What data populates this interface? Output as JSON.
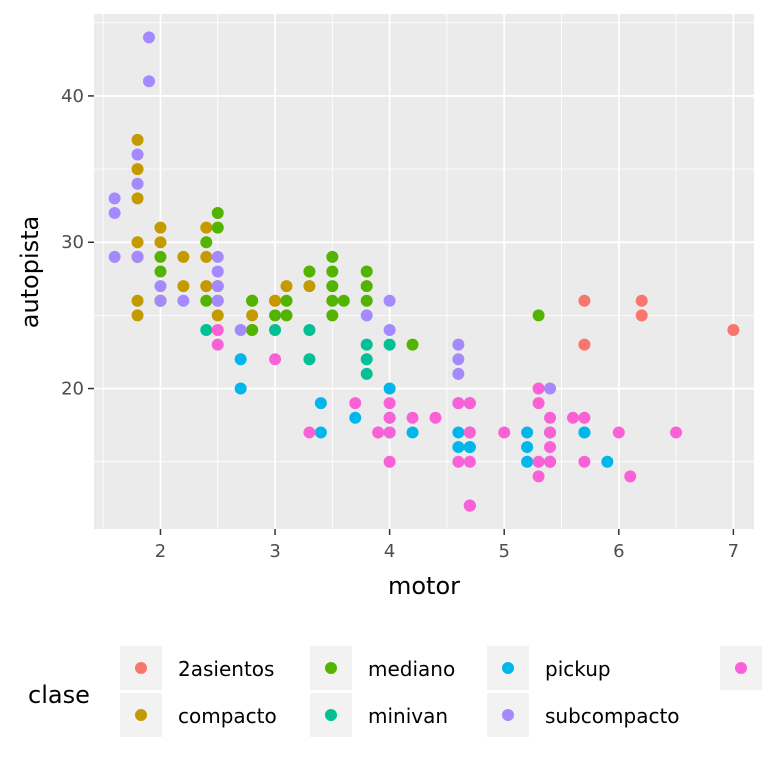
{
  "chart_data": {
    "type": "scatter",
    "title": "",
    "xlabel": "motor",
    "ylabel": "autopista",
    "xlim": [
      1.42,
      7.18
    ],
    "ylim": [
      10.4,
      45.6
    ],
    "x_ticks": [
      2,
      3,
      4,
      5,
      6,
      7
    ],
    "y_ticks": [
      20,
      30,
      40
    ],
    "grid": true,
    "legend_title": "clase",
    "legend_position": "bottom",
    "series": [
      {
        "name": "2asientos",
        "color": "#F8766D",
        "x": [
          5.7,
          5.7,
          6.2,
          6.2,
          7.0
        ],
        "y": [
          26,
          23,
          26,
          25,
          24
        ]
      },
      {
        "name": "compacto",
        "color": "#C49A00",
        "x": [
          1.8,
          1.8,
          1.8,
          1.8,
          1.8,
          1.8,
          1.8,
          2.0,
          2.0,
          2.0,
          2.2,
          2.2,
          2.4,
          2.4,
          2.4,
          2.5,
          2.5,
          2.5,
          2.8,
          2.8,
          2.8,
          3.0,
          3.0,
          3.1,
          3.3
        ],
        "y": [
          37,
          35,
          33,
          30,
          26,
          25,
          29,
          31,
          30,
          26,
          29,
          27,
          31,
          29,
          27,
          27,
          26,
          25,
          26,
          25,
          24,
          26,
          26,
          27,
          27
        ]
      },
      {
        "name": "mediano",
        "color": "#53B400",
        "x": [
          1.8,
          2.0,
          2.0,
          2.0,
          2.4,
          2.4,
          2.5,
          2.5,
          2.8,
          2.8,
          3.0,
          3.1,
          3.1,
          3.3,
          3.5,
          3.5,
          3.5,
          3.5,
          3.5,
          3.6,
          3.8,
          3.8,
          3.8,
          4.2,
          5.3
        ],
        "y": [
          29,
          29,
          28,
          26,
          30,
          26,
          32,
          31,
          26,
          24,
          25,
          26,
          25,
          28,
          29,
          28,
          27,
          26,
          25,
          26,
          28,
          27,
          26,
          23,
          25
        ]
      },
      {
        "name": "minivan",
        "color": "#00C094",
        "x": [
          2.4,
          3.0,
          3.3,
          3.3,
          3.8,
          3.8,
          3.8,
          4.0
        ],
        "y": [
          24,
          24,
          24,
          22,
          23,
          22,
          21,
          23
        ]
      },
      {
        "name": "pickup",
        "color": "#00B6EB",
        "x": [
          2.7,
          2.7,
          3.4,
          3.4,
          3.7,
          4.0,
          4.0,
          4.0,
          4.2,
          4.6,
          4.6,
          4.7,
          4.7,
          4.7,
          4.7,
          5.2,
          5.2,
          5.2,
          5.4,
          5.4,
          5.7,
          5.7,
          5.9,
          4.7
        ],
        "y": [
          22,
          20,
          19,
          17,
          18,
          20,
          18,
          17,
          17,
          17,
          16,
          16,
          17,
          16,
          19,
          17,
          16,
          15,
          15,
          17,
          17,
          17,
          15,
          12
        ]
      },
      {
        "name": "subcompacto",
        "color": "#A58AFF",
        "x": [
          1.6,
          1.6,
          1.6,
          1.8,
          1.8,
          1.8,
          1.9,
          1.9,
          2.0,
          2.0,
          2.2,
          2.5,
          2.5,
          2.5,
          2.5,
          2.7,
          3.8,
          4.0,
          4.0,
          4.6,
          4.6,
          4.6,
          4.6,
          5.4
        ],
        "y": [
          33,
          32,
          29,
          36,
          34,
          29,
          44,
          41,
          27,
          26,
          26,
          29,
          28,
          27,
          26,
          24,
          25,
          26,
          24,
          23,
          22,
          21,
          19,
          20
        ]
      },
      {
        "name": "",
        "color": "#FB61D7",
        "x": [
          2.5,
          2.5,
          3.0,
          3.3,
          3.7,
          3.9,
          3.9,
          4.0,
          4.0,
          4.0,
          4.0,
          4.2,
          4.4,
          4.6,
          4.6,
          4.7,
          4.7,
          4.7,
          4.7,
          5.0,
          5.3,
          5.3,
          5.3,
          5.3,
          5.4,
          5.4,
          5.4,
          5.4,
          5.6,
          5.7,
          5.7,
          6.0,
          6.1,
          6.5,
          4.7
        ],
        "y": [
          24,
          23,
          22,
          17,
          19,
          17,
          17,
          19,
          18,
          17,
          15,
          18,
          18,
          19,
          15,
          19,
          17,
          15,
          12,
          17,
          20,
          19,
          15,
          14,
          18,
          17,
          16,
          15,
          18,
          18,
          15,
          17,
          14,
          17,
          12
        ]
      }
    ]
  }
}
